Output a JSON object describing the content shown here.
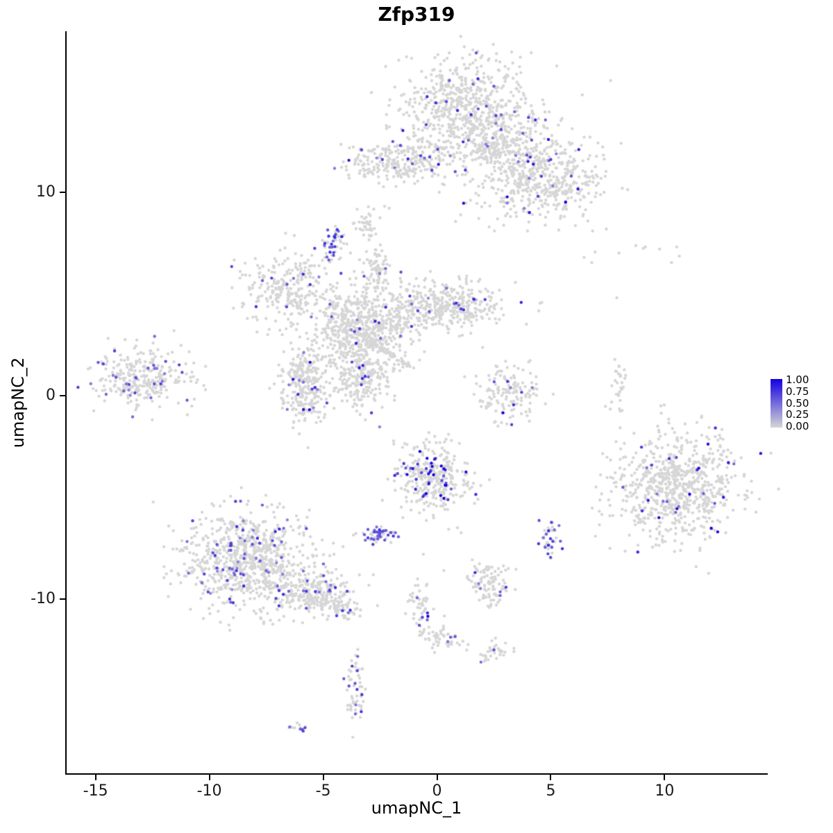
{
  "chart_data": {
    "type": "scatter",
    "title": "Zfp319",
    "xlabel": "umapNC_1",
    "ylabel": "umapNC_2",
    "xlim": [
      -16.3,
      14.5
    ],
    "ylim": [
      -18.6,
      17.9
    ],
    "x_ticks": [
      -15,
      -10,
      -5,
      0,
      5,
      10
    ],
    "y_ticks": [
      -10,
      0,
      10
    ],
    "grid": false,
    "point_radius": 2.2,
    "colors": {
      "low": "#d6d6d6",
      "high": "#1400e0"
    },
    "legend": {
      "position": "right",
      "labels": [
        "1.00",
        "0.75",
        "0.50",
        "0.25",
        "0.00"
      ]
    },
    "seed": 42,
    "clusters": [
      {
        "name": "top-upper-lobe",
        "cx": 1.2,
        "cy": 14.2,
        "sx": 1.5,
        "sy": 1.2,
        "n": 600,
        "frac": 0.035,
        "vmin": 0.35,
        "vmax": 0.85
      },
      {
        "name": "top-right-lobe",
        "cx": 4.4,
        "cy": 10.7,
        "sx": 1.4,
        "sy": 1.1,
        "n": 550,
        "frac": 0.05,
        "vmin": 0.35,
        "vmax": 0.95
      },
      {
        "name": "top-neck",
        "cx": 2.6,
        "cy": 12.5,
        "sx": 0.9,
        "sy": 0.8,
        "n": 220,
        "frac": 0.03,
        "vmin": 0.35,
        "vmax": 0.8
      },
      {
        "name": "top-left-band",
        "cx": -1.7,
        "cy": 11.5,
        "sx": 1.2,
        "sy": 0.5,
        "n": 280,
        "frac": 0.035,
        "vmin": 0.35,
        "vmax": 0.9
      },
      {
        "name": "blob-above-center",
        "cx": -3.05,
        "cy": 8.5,
        "sx": 0.3,
        "sy": 0.35,
        "n": 35,
        "frac": 0.03,
        "vmin": 0.4,
        "vmax": 0.6
      },
      {
        "name": "purple-blob",
        "cx": -4.5,
        "cy": 7.45,
        "sx": 0.28,
        "sy": 0.45,
        "n": 45,
        "frac": 0.45,
        "vmin": 0.45,
        "vmax": 0.8
      },
      {
        "name": "left-mid-cluster",
        "cx": -6.6,
        "cy": 5.3,
        "sx": 1.0,
        "sy": 0.85,
        "n": 260,
        "frac": 0.05,
        "vmin": 0.35,
        "vmax": 0.8
      },
      {
        "name": "central-core",
        "cx": -3.35,
        "cy": 3.4,
        "sx": 1.1,
        "sy": 1.0,
        "n": 600,
        "frac": 0.035,
        "vmin": 0.35,
        "vmax": 0.85
      },
      {
        "name": "central-right-arm",
        "cx": 0.3,
        "cy": 4.45,
        "sx": 1.25,
        "sy": 0.6,
        "n": 400,
        "frac": 0.04,
        "vmin": 0.35,
        "vmax": 0.85
      },
      {
        "name": "central-left-arm",
        "cx": -5.75,
        "cy": 0.5,
        "sx": 0.55,
        "sy": 1.0,
        "n": 280,
        "frac": 0.05,
        "vmin": 0.35,
        "vmax": 0.95
      },
      {
        "name": "central-down-arm",
        "cx": -3.35,
        "cy": 0.9,
        "sx": 0.6,
        "sy": 0.85,
        "n": 220,
        "frac": 0.04,
        "vmin": 0.35,
        "vmax": 0.9
      },
      {
        "name": "central-top-arm",
        "cx": -2.65,
        "cy": 6.4,
        "sx": 0.3,
        "sy": 0.55,
        "n": 70,
        "frac": 0.04,
        "vmin": 0.35,
        "vmax": 0.7
      },
      {
        "name": "central-streak",
        "line": [
          -2.95,
          2.7,
          -1.2,
          1.4
        ],
        "jitter": 0.09,
        "n": 70,
        "frac": 0.0,
        "vmin": 0,
        "vmax": 0
      },
      {
        "name": "far-left-cluster",
        "cx": -12.9,
        "cy": 0.95,
        "sx": 1.1,
        "sy": 0.75,
        "n": 300,
        "frac": 0.12,
        "vmin": 0.35,
        "vmax": 0.75
      },
      {
        "name": "right-mid-cluster",
        "cx": 3.2,
        "cy": 0.1,
        "sx": 0.8,
        "sy": 0.7,
        "n": 140,
        "frac": 0.06,
        "vmin": 0.4,
        "vmax": 0.9
      },
      {
        "name": "tiny-strip",
        "cx": 7.95,
        "cy": 0.35,
        "sx": 0.15,
        "sy": 0.6,
        "n": 28,
        "frac": 0,
        "vmin": 0,
        "vmax": 0
      },
      {
        "name": "sparse-topright",
        "cx": 8.6,
        "cy": 6.9,
        "sx": 1.3,
        "sy": 0.3,
        "n": 10,
        "frac": 0,
        "vmin": 0,
        "vmax": 0
      },
      {
        "name": "right-large-cluster",
        "cx": 10.5,
        "cy": -4.45,
        "sx": 1.35,
        "sy": 1.25,
        "n": 750,
        "frac": 0.04,
        "vmin": 0.35,
        "vmax": 1.0
      },
      {
        "name": "bottom-center-cluster",
        "cx": -0.25,
        "cy": -4.0,
        "sx": 0.8,
        "sy": 0.9,
        "n": 320,
        "frac": 0.12,
        "vmin": 0.55,
        "vmax": 1.0
      },
      {
        "name": "small-purple-blob-left",
        "cx": -2.6,
        "cy": -6.9,
        "sx": 0.4,
        "sy": 0.28,
        "n": 50,
        "frac": 0.5,
        "vmin": 0.45,
        "vmax": 0.75
      },
      {
        "name": "bottomleft-core",
        "cx": -8.35,
        "cy": -8.1,
        "sx": 1.4,
        "sy": 1.2,
        "n": 800,
        "frac": 0.1,
        "vmin": 0.35,
        "vmax": 0.8
      },
      {
        "name": "bottomleft-ext",
        "cx": -5.4,
        "cy": -9.7,
        "sx": 0.9,
        "sy": 0.55,
        "n": 260,
        "frac": 0.08,
        "vmin": 0.35,
        "vmax": 0.8
      },
      {
        "name": "bottomleft-tail",
        "cx": -4.1,
        "cy": -10.5,
        "sx": 0.35,
        "sy": 0.25,
        "n": 50,
        "frac": 0.05,
        "vmin": 0.35,
        "vmax": 0.7
      },
      {
        "name": "small-bottom-cluster",
        "cx": 2.3,
        "cy": -9.3,
        "sx": 0.5,
        "sy": 0.55,
        "n": 100,
        "frac": 0.08,
        "vmin": 0.4,
        "vmax": 0.8
      },
      {
        "name": "small-blob-right",
        "cx": 4.9,
        "cy": -7.0,
        "sx": 0.22,
        "sy": 0.4,
        "n": 40,
        "frac": 0.35,
        "vmin": 0.45,
        "vmax": 0.8
      },
      {
        "name": "strip-below-center",
        "cx": -0.65,
        "cy": -10.6,
        "sx": 0.3,
        "sy": 0.7,
        "n": 55,
        "frac": 0.05,
        "vmin": 0.4,
        "vmax": 0.8
      },
      {
        "name": "blob-low-center",
        "cx": 0.45,
        "cy": -11.8,
        "sx": 0.35,
        "sy": 0.3,
        "n": 40,
        "frac": 0.04,
        "vmin": 0.4,
        "vmax": 0.7
      },
      {
        "name": "blob-low-right",
        "cx": 2.4,
        "cy": -12.6,
        "sx": 0.4,
        "sy": 0.28,
        "n": 35,
        "frac": 0.06,
        "vmin": 0.4,
        "vmax": 0.7
      },
      {
        "name": "vertical-blob-bottom",
        "cx": -3.55,
        "cy": -14.6,
        "sx": 0.26,
        "sy": 0.85,
        "n": 60,
        "frac": 0.22,
        "vmin": 0.45,
        "vmax": 0.8
      },
      {
        "name": "tiny-bottom-left",
        "cx": -6.1,
        "cy": -16.3,
        "sx": 0.25,
        "sy": 0.15,
        "n": 14,
        "frac": 0.3,
        "vmin": 0.5,
        "vmax": 0.8
      }
    ],
    "singles": [
      [
        7.9,
        4.8
      ],
      [
        6.95,
        7.05
      ],
      [
        -2.1,
        9.2
      ],
      [
        -3.8,
        7.0
      ],
      [
        0.9,
        -6.5
      ],
      [
        -0.6,
        -7.8
      ],
      [
        -1.5,
        -6.0
      ],
      [
        0.3,
        -8.6
      ],
      [
        1.8,
        -5.1
      ],
      [
        -4.3,
        6.7
      ],
      [
        -0.2,
        -12.4
      ],
      [
        5.0,
        -8.0
      ],
      [
        -2.3,
        9.3
      ]
    ],
    "colored_singles": [
      {
        "x": 5.65,
        "y": 9.5,
        "v": 1.0
      },
      {
        "x": 2.9,
        "y": -0.85,
        "v": 1.0
      },
      {
        "x": -0.4,
        "y": -10.85,
        "v": 1.0
      },
      {
        "x": 11.1,
        "y": -4.85,
        "v": 1.0
      },
      {
        "x": 9.75,
        "y": -6.0,
        "v": 0.95
      },
      {
        "x": -0.75,
        "y": -2.75,
        "v": 1.0
      },
      {
        "x": -0.15,
        "y": -3.9,
        "v": 1.0
      },
      {
        "x": 0.3,
        "y": -3.6,
        "v": 0.95
      },
      {
        "x": -8.85,
        "y": -5.2,
        "v": 0.7
      },
      {
        "x": 1.5,
        "y": 13.8,
        "v": 0.8
      },
      {
        "x": 2.5,
        "y": 15.2,
        "v": 0.6
      },
      {
        "x": -5.6,
        "y": -0.7,
        "v": 0.95
      },
      {
        "x": 0.8,
        "y": -11.85,
        "v": 0.6
      },
      {
        "x": 2.5,
        "y": -12.5,
        "v": 0.6
      },
      {
        "x": 10.2,
        "y": -3.1,
        "v": 0.8
      },
      {
        "x": 12.2,
        "y": -5.3,
        "v": 0.6
      },
      {
        "x": 4.0,
        "y": 11.5,
        "v": 0.85
      },
      {
        "x": 5.0,
        "y": 11.6,
        "v": 0.7
      },
      {
        "x": -2.4,
        "y": 11.6,
        "v": 0.7
      },
      {
        "x": 0.8,
        "y": 11.0,
        "v": 0.6
      }
    ]
  }
}
